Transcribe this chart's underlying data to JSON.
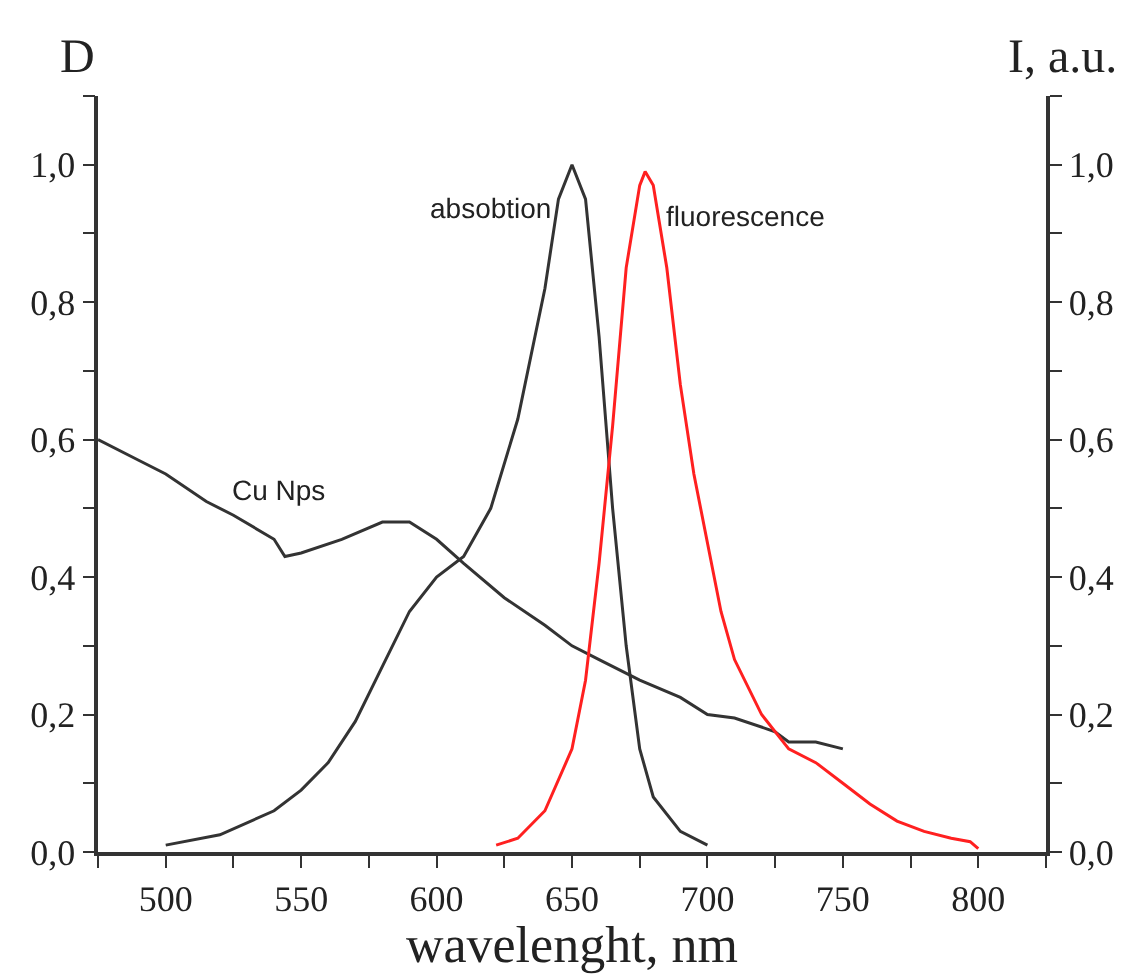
{
  "chart_data": {
    "type": "line",
    "xlabel": "wavelenght, nm",
    "ylabel": "D",
    "y2label": "I, a.u.",
    "xlim": [
      475,
      825
    ],
    "xticks": [
      {
        "value": 475,
        "label": null
      },
      500,
      {
        "value": 525,
        "label": null
      },
      550,
      {
        "value": 575,
        "label": null
      },
      600,
      {
        "value": 625,
        "label": null
      },
      650,
      {
        "value": 675,
        "label": null
      },
      700,
      {
        "value": 725,
        "label": null
      },
      750,
      {
        "value": 775,
        "label": null
      },
      800,
      {
        "value": 825,
        "label": null
      }
    ],
    "ylim": [
      0,
      1.1
    ],
    "yticks": [
      {
        "value": 0,
        "label": "0,0"
      },
      {
        "value": 0.1,
        "label": null
      },
      {
        "value": 0.2,
        "label": "0,2"
      },
      {
        "value": 0.3,
        "label": null
      },
      {
        "value": 0.4,
        "label": "0,4"
      },
      {
        "value": 0.5,
        "label": null
      },
      {
        "value": 0.6,
        "label": "0,6"
      },
      {
        "value": 0.7,
        "label": null
      },
      {
        "value": 0.8,
        "label": "0,8"
      },
      {
        "value": 0.9,
        "label": null
      },
      {
        "value": 1.0,
        "label": "1,0"
      },
      {
        "value": 1.1,
        "label": null
      }
    ],
    "y2lim": [
      0,
      1.1
    ],
    "y2ticks": [
      {
        "value": 0,
        "label": "0,0"
      },
      {
        "value": 0.1,
        "label": null
      },
      {
        "value": 0.2,
        "label": "0,2"
      },
      {
        "value": 0.3,
        "label": null
      },
      {
        "value": 0.4,
        "label": "0,4"
      },
      {
        "value": 0.5,
        "label": null
      },
      {
        "value": 0.6,
        "label": "0,6"
      },
      {
        "value": 0.7,
        "label": null
      },
      {
        "value": 0.8,
        "label": "0,8"
      },
      {
        "value": 0.9,
        "label": null
      },
      {
        "value": 1.0,
        "label": "1,0"
      },
      {
        "value": 1.1,
        "label": null
      }
    ],
    "grid": false,
    "legend": false,
    "marker": "none",
    "line_style": "solid",
    "series": [
      {
        "name": "Cu Nps",
        "color": "#333333",
        "x": [
          475,
          490,
          500,
          515,
          525,
          540,
          544,
          550,
          565,
          580,
          590,
          600,
          610,
          625,
          640,
          650,
          660,
          675,
          690,
          700,
          710,
          725,
          730,
          740,
          750
        ],
        "values": [
          0.6,
          0.57,
          0.55,
          0.51,
          0.49,
          0.455,
          0.43,
          0.435,
          0.455,
          0.48,
          0.48,
          0.455,
          0.42,
          0.37,
          0.33,
          0.3,
          0.28,
          0.25,
          0.225,
          0.2,
          0.195,
          0.175,
          0.16,
          0.16,
          0.15
        ]
      },
      {
        "name": "absobtion",
        "color": "#333333",
        "x": [
          500,
          520,
          540,
          550,
          560,
          570,
          580,
          590,
          600,
          610,
          620,
          630,
          640,
          645,
          650,
          655,
          660,
          665,
          670,
          675,
          680,
          690,
          700
        ],
        "values": [
          0.01,
          0.025,
          0.06,
          0.09,
          0.13,
          0.19,
          0.27,
          0.35,
          0.4,
          0.43,
          0.5,
          0.63,
          0.82,
          0.95,
          1.0,
          0.95,
          0.75,
          0.5,
          0.3,
          0.15,
          0.08,
          0.03,
          0.01
        ]
      },
      {
        "name": "fluorescence",
        "color": "#ff2020",
        "axis": "y2",
        "x": [
          622,
          630,
          640,
          650,
          655,
          660,
          665,
          670,
          675,
          677,
          680,
          685,
          690,
          695,
          700,
          705,
          710,
          720,
          730,
          740,
          750,
          760,
          770,
          780,
          790,
          797,
          800
        ],
        "values": [
          0.01,
          0.02,
          0.06,
          0.15,
          0.25,
          0.42,
          0.62,
          0.85,
          0.97,
          0.99,
          0.97,
          0.85,
          0.68,
          0.55,
          0.45,
          0.35,
          0.28,
          0.2,
          0.15,
          0.13,
          0.1,
          0.07,
          0.045,
          0.03,
          0.02,
          0.015,
          0.005
        ]
      }
    ]
  }
}
